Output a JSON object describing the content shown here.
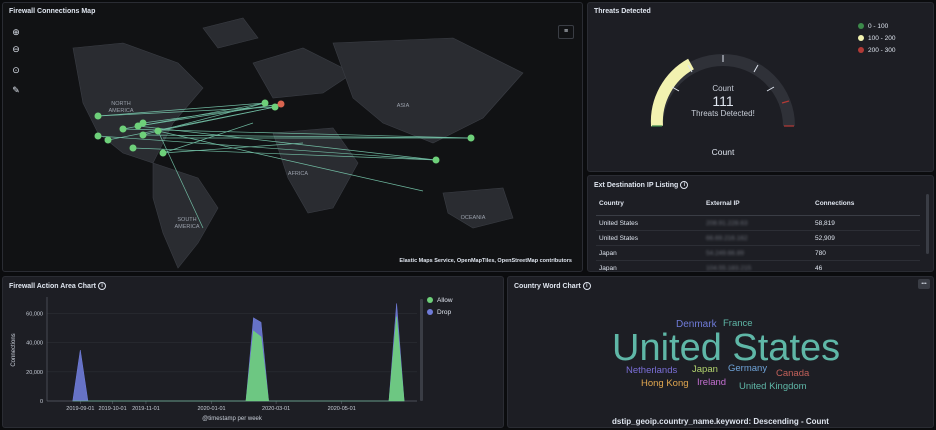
{
  "map_panel": {
    "title": "Firewall Connections Map",
    "attribution": "Elastic Maps Service, OpenMapTiles, OpenStreetMap contributors",
    "labels": {
      "north_america": "NORTH\nAMERICA",
      "south_america": "SOUTH\nAMERICA",
      "asia": "ASIA",
      "africa": "AFRICA",
      "oceania": "OCEANIA"
    },
    "controls": [
      "zoom-in-icon",
      "zoom-out-icon",
      "compass-icon",
      "draw-tool-icon"
    ],
    "colors": {
      "line": "#7fd6b8",
      "point": "#6ed07a",
      "hot_point": "#d9644f"
    }
  },
  "gauge_panel": {
    "title": "Threats Detected",
    "label": "Count",
    "value": "111",
    "sublabel": "Threats Detected!",
    "footer": "Count",
    "legend": [
      {
        "label": "0 - 100",
        "color": "#3c8a4a"
      },
      {
        "label": "100 - 200",
        "color": "#f2f2b0"
      },
      {
        "label": "200 - 300",
        "color": "#b23a36"
      }
    ]
  },
  "ip_panel": {
    "title": "Ext Destination IP Listing",
    "headers": [
      "Country",
      "External IP",
      "Connections"
    ],
    "rows": [
      {
        "country": "United States",
        "ip": "208.91.228.63",
        "connections": "58,819"
      },
      {
        "country": "United States",
        "ip": "66.69.216.162",
        "connections": "52,909"
      },
      {
        "country": "Japan",
        "ip": "54.249.66.89",
        "connections": "780"
      },
      {
        "country": "Japan",
        "ip": "104.55.183.215",
        "connections": "46"
      }
    ]
  },
  "area_panel": {
    "title": "Firewall Action Area Chart",
    "xlabel": "@timestamp per week",
    "ylabel": "Connections",
    "legend": [
      {
        "label": "Allow",
        "color": "#6ed07a"
      },
      {
        "label": "Drop",
        "color": "#6f7bd8"
      }
    ]
  },
  "chart_data": {
    "type": "area",
    "xlabel": "@timestamp per week",
    "ylabel": "Connections",
    "ylim": [
      0,
      70000
    ],
    "yticks": [
      "0",
      "20,000",
      "40,000",
      "60,000"
    ],
    "xticks": [
      "2019-09-01",
      "2019-10-01",
      "2019-11-01",
      "2020-01-01",
      "2020-03-01",
      "2020-05-01"
    ],
    "x": [
      "2019-08-25",
      "2019-09-01",
      "2019-09-08",
      "2019-09-15",
      "2020-02-02",
      "2020-02-09",
      "2020-02-16",
      "2020-02-23",
      "2020-06-14",
      "2020-06-21",
      "2020-06-28"
    ],
    "series": [
      {
        "name": "Allow",
        "values": [
          0,
          0,
          0,
          0,
          0,
          48000,
          44000,
          0,
          0,
          58000,
          0
        ]
      },
      {
        "name": "Drop",
        "values": [
          0,
          35000,
          0,
          0,
          0,
          57000,
          54000,
          0,
          0,
          67000,
          0
        ]
      }
    ],
    "legend": "right"
  },
  "word_panel": {
    "title": "Country Word Chart",
    "footer": "dstip_geoip.country_name.keyword: Descending - Count",
    "menu": "•••",
    "words": [
      {
        "text": "Denmark",
        "color": "#6f7bd8"
      },
      {
        "text": "France",
        "color": "#5fb7a7"
      },
      {
        "text": "United States",
        "color": "#5fb7a7"
      },
      {
        "text": "Netherlands",
        "color": "#7b6fd8"
      },
      {
        "text": "Japan",
        "color": "#b3d56e"
      },
      {
        "text": "Germany",
        "color": "#6fa3d8"
      },
      {
        "text": "Canada",
        "color": "#c2615a"
      },
      {
        "text": "Hong Kong",
        "color": "#e0a64f"
      },
      {
        "text": "Ireland",
        "color": "#c36fd0"
      },
      {
        "text": "United Kingdom",
        "color": "#5fb7a7"
      }
    ]
  }
}
